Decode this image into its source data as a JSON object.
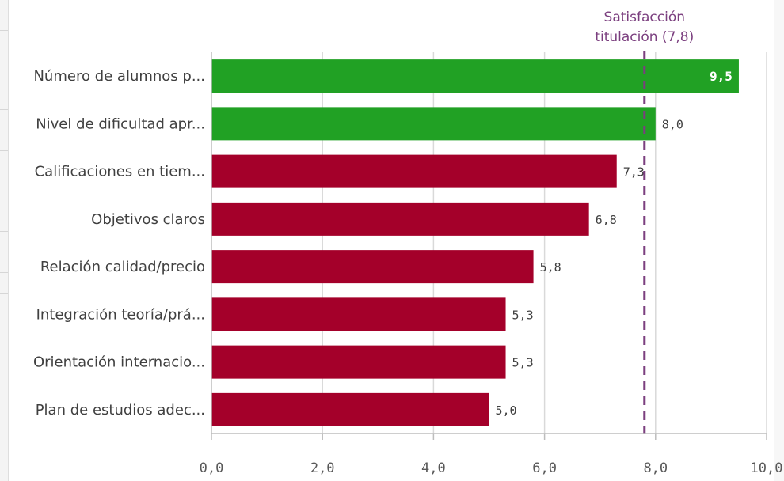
{
  "chart_data": {
    "type": "bar",
    "orientation": "horizontal",
    "categories": [
      "Número de alumnos p...",
      "Nivel de dificultad apr...",
      "Calificaciones en tiem...",
      "Objetivos claros",
      "Relación calidad/precio",
      "Integración teoría/prá...",
      "Orientación internacio...",
      "Plan de estudios adec..."
    ],
    "values": [
      9.5,
      8.0,
      7.3,
      6.8,
      5.8,
      5.3,
      5.3,
      5.0
    ],
    "value_labels": [
      "9,5",
      "8,0",
      "7,3",
      "6,8",
      "5,8",
      "5,3",
      "5,3",
      "5,0"
    ],
    "bar_colors": [
      "#21a124",
      "#21a124",
      "#a4002a",
      "#a4002a",
      "#a4002a",
      "#a4002a",
      "#a4002a",
      "#a4002a"
    ],
    "xlim": [
      0,
      10
    ],
    "x_ticks": [
      0,
      2,
      4,
      6,
      8,
      10
    ],
    "x_tick_labels": [
      "0,0",
      "2,0",
      "4,0",
      "6,0",
      "8,0",
      "10,0"
    ],
    "grid": true,
    "reference_line": {
      "value": 7.8,
      "label_lines": [
        "Satisfacción",
        "titulación (7,8)"
      ],
      "color": "#7b3f7f",
      "style": "dashed"
    },
    "colors": {
      "above": "#21a124",
      "below": "#a4002a",
      "grid": "#d9d9d9",
      "axis": "#bdbdbd"
    }
  }
}
